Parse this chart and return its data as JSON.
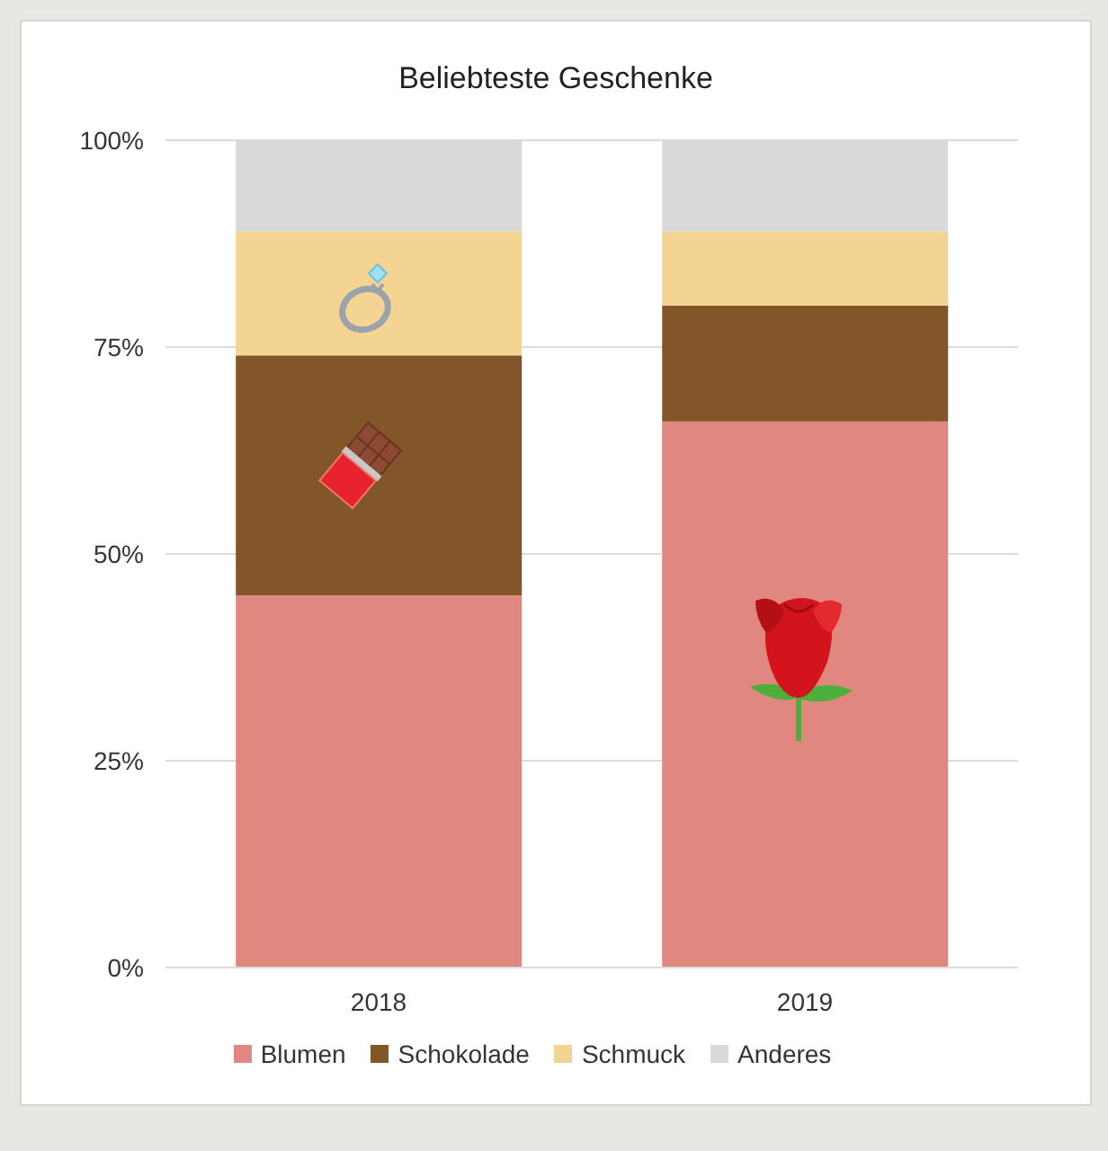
{
  "chart_data": {
    "type": "bar",
    "title": "Beliebteste Geschenke",
    "categories": [
      "2018",
      "2019"
    ],
    "series": [
      {
        "name": "Blumen",
        "color": "#e08880",
        "values": [
          45,
          66
        ]
      },
      {
        "name": "Schokolade",
        "color": "#83562a",
        "values": [
          29,
          14
        ]
      },
      {
        "name": "Schmuck",
        "color": "#f3d492",
        "values": [
          15,
          9
        ]
      },
      {
        "name": "Anderes",
        "color": "#d9d9d9",
        "values": [
          11,
          11
        ]
      }
    ],
    "stacked": true,
    "ylim": [
      0,
      100
    ],
    "yticks": [
      {
        "value": 0,
        "label": "0%"
      },
      {
        "value": 25,
        "label": "25%"
      },
      {
        "value": 50,
        "label": "50%"
      },
      {
        "value": 75,
        "label": "75%"
      },
      {
        "value": 100,
        "label": "100%"
      }
    ],
    "grid": "y",
    "legend": "bottom"
  }
}
